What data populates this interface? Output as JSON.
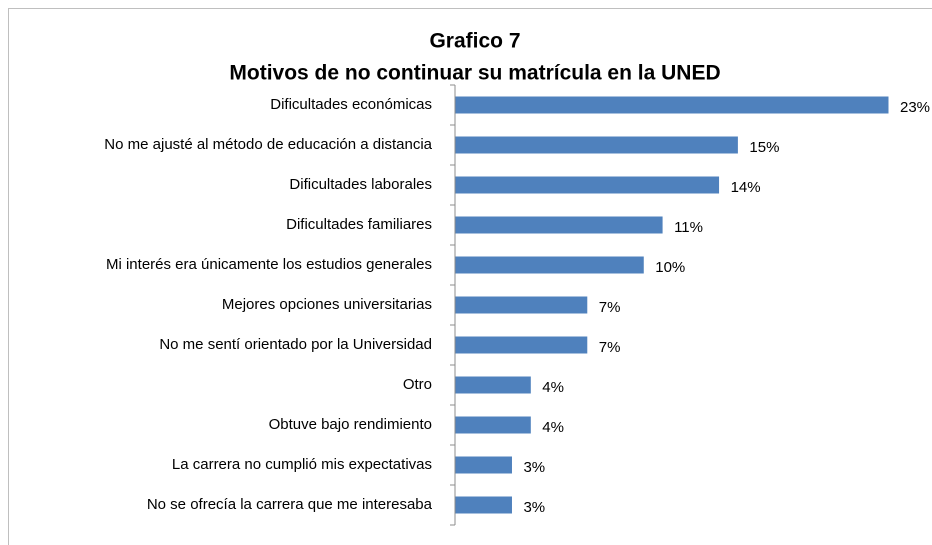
{
  "chart_data": {
    "type": "bar",
    "orientation": "horizontal",
    "title": "Grafico 7",
    "subtitle": "Motivos de no continuar su matrícula en la UNED",
    "categories": [
      "Dificultades económicas",
      "No me ajusté al método de educación a distancia",
      "Dificultades laborales",
      "Dificultades familiares",
      "Mi interés era únicamente los estudios generales",
      "Mejores opciones universitarias",
      "No me sentí orientado por la Universidad",
      "Otro",
      "Obtuve bajo rendimiento",
      "La carrera no cumplió mis expectativas",
      "No se ofrecía la carrera que me interesaba"
    ],
    "values": [
      23,
      15,
      14,
      11,
      10,
      7,
      7,
      4,
      4,
      3,
      3
    ],
    "value_labels": [
      "23%",
      "15%",
      "14%",
      "11%",
      "10%",
      "7%",
      "7%",
      "4%",
      "4%",
      "3%",
      "3%"
    ],
    "color": "#4f81bd"
  }
}
